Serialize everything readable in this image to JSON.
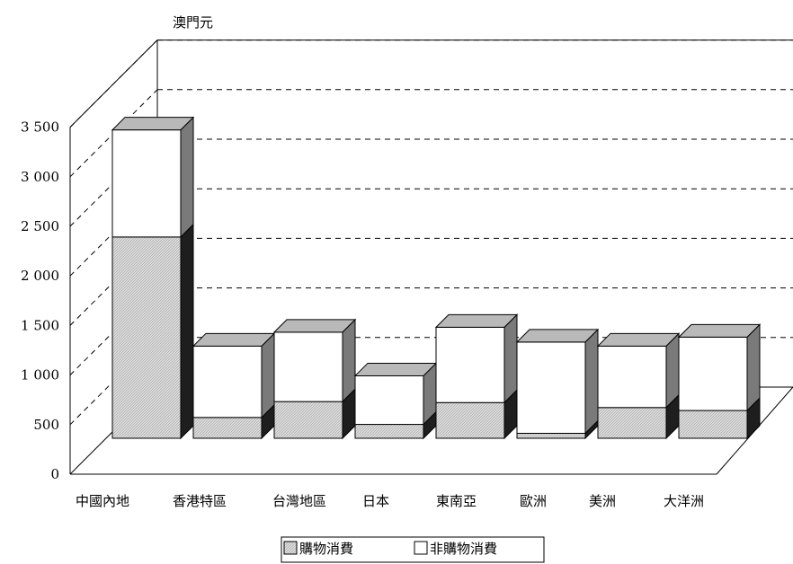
{
  "chart_data": {
    "type": "bar",
    "stacked": true,
    "three_d": true,
    "unit_label": "澳門元",
    "categories": [
      "中國內地",
      "香港特區",
      "台灣地區",
      "日本",
      "東南亞",
      "歐洲",
      "美洲",
      "大洋洲"
    ],
    "series": [
      {
        "name": "購物消費",
        "values": [
          2030,
          210,
          370,
          140,
          360,
          50,
          310,
          280
        ]
      },
      {
        "name": "非購物消費",
        "values": [
          1080,
          720,
          700,
          490,
          760,
          920,
          620,
          740
        ]
      }
    ],
    "y_ticks": [
      "0",
      "500",
      "1 000",
      "1 500",
      "2 000",
      "2 500",
      "3 000",
      "3 500"
    ],
    "ylim": [
      0,
      3500
    ],
    "grid": "dashed horizontal",
    "legend_position": "bottom",
    "colors": {
      "shopping_front": "#d6d6d6",
      "shopping_side": "#1e1e1e",
      "non_shopping_front": "#ffffff",
      "non_shopping_side": "#7a7a7a",
      "top": "#b9b9b9",
      "line": "#000000"
    }
  }
}
